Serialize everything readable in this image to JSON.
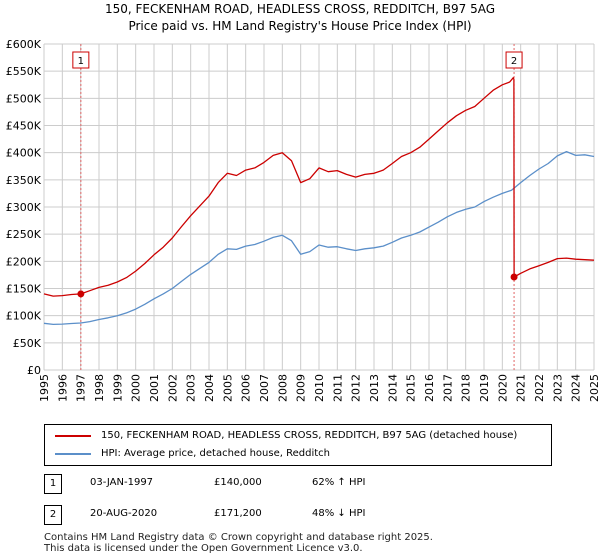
{
  "title_line1": "150, FECKENHAM ROAD, HEADLESS CROSS, REDDITCH, B97 5AG",
  "title_line2": "Price paid vs. HM Land Registry's House Price Index (HPI)",
  "colors": {
    "property": "#cc0000",
    "hpi": "#5b8fc9",
    "grid": "#cccccc"
  },
  "chart_data": {
    "type": "line",
    "xlim": [
      1995.0,
      2025.0
    ],
    "ylim": [
      0,
      600000
    ],
    "y_ticks": [
      {
        "value": 0,
        "label": "£0"
      },
      {
        "value": 50000,
        "label": "£50K"
      },
      {
        "value": 100000,
        "label": "£100K"
      },
      {
        "value": 150000,
        "label": "£150K"
      },
      {
        "value": 200000,
        "label": "£200K"
      },
      {
        "value": 250000,
        "label": "£250K"
      },
      {
        "value": 300000,
        "label": "£300K"
      },
      {
        "value": 350000,
        "label": "£350K"
      },
      {
        "value": 400000,
        "label": "£400K"
      },
      {
        "value": 450000,
        "label": "£450K"
      },
      {
        "value": 500000,
        "label": "£500K"
      },
      {
        "value": 550000,
        "label": "£550K"
      },
      {
        "value": 600000,
        "label": "£600K"
      }
    ],
    "x_ticks": [
      "1995",
      "1996",
      "1997",
      "1998",
      "1999",
      "2000",
      "2001",
      "2002",
      "2003",
      "2004",
      "2005",
      "2006",
      "2007",
      "2008",
      "2009",
      "2010",
      "2011",
      "2012",
      "2013",
      "2014",
      "2015",
      "2016",
      "2017",
      "2018",
      "2019",
      "2020",
      "2021",
      "2022",
      "2023",
      "2024",
      "2025"
    ],
    "series": [
      {
        "name": "150, FECKENHAM ROAD, HEADLESS CROSS, REDDITCH, B97 5AG (detached house)",
        "color": "#cc0000",
        "x": [
          1995.0,
          1995.5,
          1996.0,
          1996.5,
          1997.01,
          1997.5,
          1998.0,
          1998.5,
          1999.0,
          1999.5,
          2000.0,
          2000.5,
          2001.0,
          2001.5,
          2002.0,
          2002.5,
          2003.0,
          2003.5,
          2004.0,
          2004.5,
          2005.0,
          2005.5,
          2006.0,
          2006.5,
          2007.0,
          2007.5,
          2008.0,
          2008.5,
          2009.0,
          2009.5,
          2010.0,
          2010.5,
          2011.0,
          2011.5,
          2012.0,
          2012.5,
          2013.0,
          2013.5,
          2014.0,
          2014.5,
          2015.0,
          2015.5,
          2016.0,
          2016.5,
          2017.0,
          2017.5,
          2018.0,
          2018.5,
          2019.0,
          2019.5,
          2020.0,
          2020.4,
          2020.6,
          2020.63,
          2020.64,
          2021.0,
          2021.5,
          2022.0,
          2022.5,
          2023.0,
          2023.5,
          2024.0,
          2024.5,
          2025.0
        ],
        "values": [
          140000,
          136000,
          137000,
          139000,
          140000,
          146000,
          152000,
          156000,
          162000,
          170000,
          182000,
          196000,
          212000,
          226000,
          243000,
          264000,
          284000,
          302000,
          320000,
          345000,
          362000,
          358000,
          368000,
          372000,
          382000,
          395000,
          400000,
          385000,
          345000,
          352000,
          372000,
          365000,
          367000,
          360000,
          355000,
          360000,
          362000,
          368000,
          380000,
          393000,
          400000,
          410000,
          425000,
          440000,
          455000,
          468000,
          478000,
          485000,
          500000,
          515000,
          525000,
          530000,
          538000,
          535000,
          171200,
          178000,
          186000,
          192000,
          198000,
          205000,
          206000,
          204000,
          203000,
          202000
        ]
      },
      {
        "name": "HPI: Average price, detached house, Redditch",
        "color": "#5b8fc9",
        "x": [
          1995.0,
          1995.5,
          1996.0,
          1996.5,
          1997.0,
          1997.5,
          1998.0,
          1998.5,
          1999.0,
          1999.5,
          2000.0,
          2000.5,
          2001.0,
          2001.5,
          2002.0,
          2002.5,
          2003.0,
          2003.5,
          2004.0,
          2004.5,
          2005.0,
          2005.5,
          2006.0,
          2006.5,
          2007.0,
          2007.5,
          2008.0,
          2008.5,
          2009.0,
          2009.5,
          2010.0,
          2010.5,
          2011.0,
          2011.5,
          2012.0,
          2012.5,
          2013.0,
          2013.5,
          2014.0,
          2014.5,
          2015.0,
          2015.5,
          2016.0,
          2016.5,
          2017.0,
          2017.5,
          2018.0,
          2018.5,
          2019.0,
          2019.5,
          2020.0,
          2020.5,
          2021.0,
          2021.5,
          2022.0,
          2022.5,
          2023.0,
          2023.5,
          2024.0,
          2024.5,
          2025.0
        ],
        "values": [
          86000,
          84000,
          84500,
          85500,
          86500,
          89000,
          93000,
          96000,
          100000,
          105000,
          112000,
          121000,
          131000,
          140000,
          150000,
          163000,
          176000,
          187000,
          198000,
          213000,
          223000,
          222000,
          228000,
          231000,
          237000,
          244000,
          248000,
          238000,
          213000,
          218000,
          230000,
          226000,
          227000,
          223000,
          220000,
          223000,
          225000,
          228000,
          235000,
          243000,
          248000,
          254000,
          263000,
          272000,
          282000,
          290000,
          296000,
          300000,
          310000,
          318000,
          325000,
          331000,
          345000,
          358000,
          370000,
          380000,
          394000,
          402000,
          395000,
          396000,
          393000
        ]
      }
    ],
    "sales": [
      {
        "label": "1",
        "x": 1997.01,
        "value": 140000
      },
      {
        "label": "2",
        "x": 2020.64,
        "value": 171200
      }
    ]
  },
  "legend": {
    "property_label": "150, FECKENHAM ROAD, HEADLESS CROSS, REDDITCH, B97 5AG (detached house)",
    "hpi_label": "HPI: Average price, detached house, Redditch"
  },
  "sales_table": [
    {
      "num": "1",
      "date": "03-JAN-1997",
      "price": "£140,000",
      "hpi": "62% ↑ HPI"
    },
    {
      "num": "2",
      "date": "20-AUG-2020",
      "price": "£171,200",
      "hpi": "48% ↓ HPI"
    }
  ],
  "footer": {
    "line1": "Contains HM Land Registry data © Crown copyright and database right 2025.",
    "line2": "This data is licensed under the Open Government Licence v3.0."
  }
}
